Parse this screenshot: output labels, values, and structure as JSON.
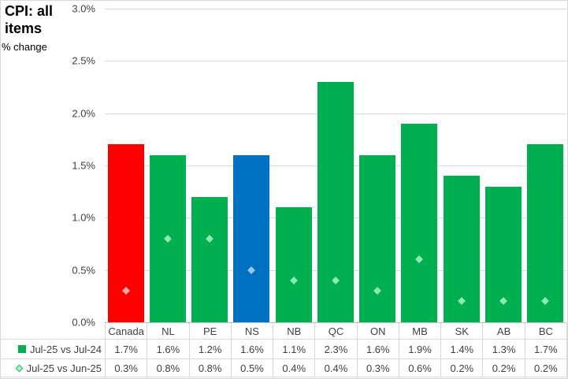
{
  "title": {
    "line1": "CPI: all",
    "line2": "items",
    "subtitle": "% change"
  },
  "y_axis": {
    "tick_labels": [
      "0.0%",
      "0.5%",
      "1.0%",
      "1.5%",
      "2.0%",
      "2.5%",
      "3.0%"
    ],
    "min": 0,
    "max": 3.0,
    "step": 0.5
  },
  "chart_data": {
    "type": "bar",
    "title": "CPI: all items",
    "ylabel": "% change",
    "ylim": [
      0,
      3.0
    ],
    "grid": true,
    "legend_position": "bottom-table",
    "categories": [
      "Canada",
      "NL",
      "PE",
      "NS",
      "NB",
      "QC",
      "ON",
      "MB",
      "SK",
      "AB",
      "BC"
    ],
    "series": [
      {
        "name": "Jul-25 vs Jul-24",
        "type": "bar",
        "values": [
          1.7,
          1.6,
          1.2,
          1.6,
          1.1,
          2.3,
          1.6,
          1.9,
          1.4,
          1.3,
          1.7
        ],
        "display": [
          "1.7%",
          "1.6%",
          "1.2%",
          "1.6%",
          "1.1%",
          "2.3%",
          "1.6%",
          "1.9%",
          "1.4%",
          "1.3%",
          "1.7%"
        ]
      },
      {
        "name": "Jul-25 vs Jun-25",
        "type": "diamond-marker",
        "values": [
          0.3,
          0.8,
          0.8,
          0.5,
          0.4,
          0.4,
          0.3,
          0.6,
          0.2,
          0.2,
          0.2
        ],
        "display": [
          "0.3%",
          "0.8%",
          "0.8%",
          "0.5%",
          "0.4%",
          "0.4%",
          "0.3%",
          "0.6%",
          "0.2%",
          "0.2%",
          "0.2%"
        ]
      }
    ],
    "bar_colors": [
      "#FF0000",
      "#00B050",
      "#00B050",
      "#0070C0",
      "#00B050",
      "#00B050",
      "#00B050",
      "#00B050",
      "#00B050",
      "#00B050",
      "#00B050"
    ],
    "marker_colors": [
      "#F7ACAA",
      "#8CE9AF",
      "#8CE9AF",
      "#95C8F0",
      "#8CE9AF",
      "#8CE9AF",
      "#8CE9AF",
      "#8CE9AF",
      "#8CE9AF",
      "#8CE9AF",
      "#8CE9AF"
    ]
  },
  "colors": {
    "bar_green": "#00B050",
    "bar_red": "#FF0000",
    "bar_blue": "#0070C0",
    "marker_green": "#8CE9AF",
    "marker_red": "#F7ACAA",
    "marker_blue": "#95C8F0",
    "legend_diamond_fill": "#ADEDCB",
    "legend_diamond_border": "#33B873",
    "gridline": "#D9D9D9",
    "axis_line": "#BFBFBF",
    "text": "#404040",
    "outer_border": "#D9D9D9"
  }
}
